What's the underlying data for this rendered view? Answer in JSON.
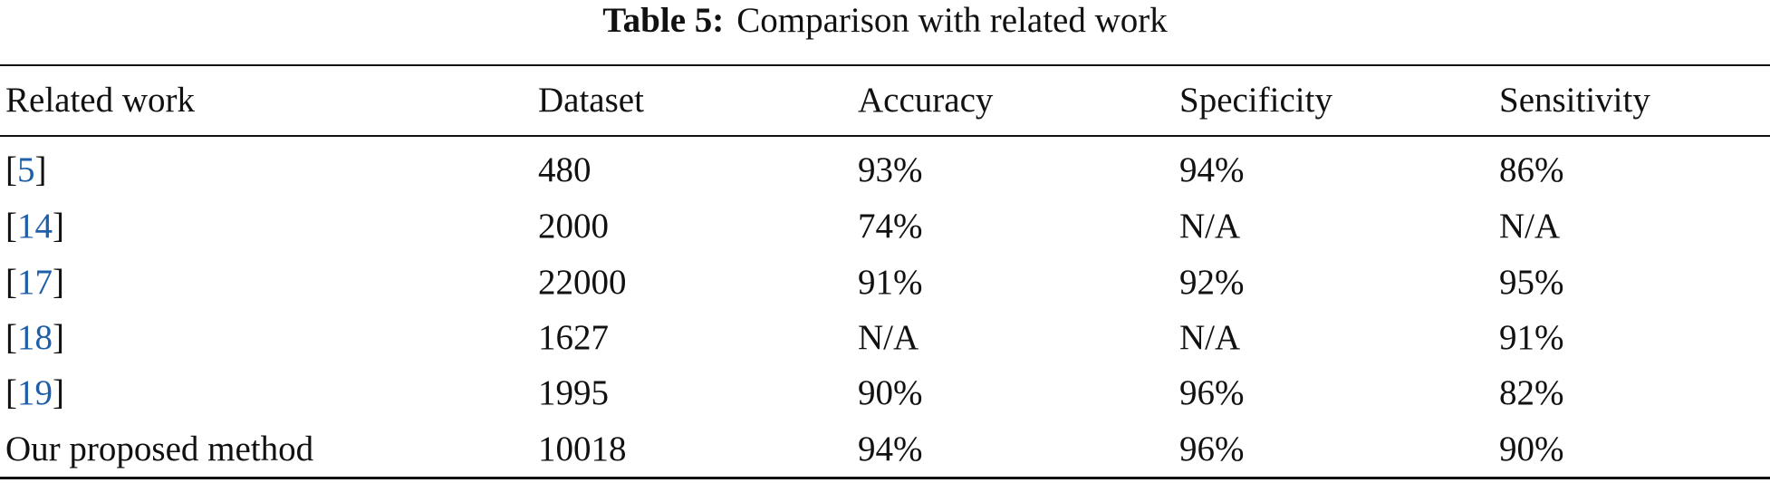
{
  "table": {
    "caption_label": "Table 5:",
    "caption": "Comparison with related work",
    "header": [
      "Related work",
      "Dataset",
      "Accuracy",
      "Specificity",
      "Sensitivity"
    ],
    "rows": [
      [
        "[5]",
        "480",
        "93%",
        "94%",
        "86%"
      ],
      [
        "[14]",
        "2000",
        "74%",
        "N/A",
        "N/A"
      ],
      [
        "[17]",
        "22000",
        "91%",
        "92%",
        "95%"
      ],
      [
        "[18]",
        "1627",
        "N/A",
        "N/A",
        "91%"
      ],
      [
        "[19]",
        "1995",
        "90%",
        "96%",
        "82%"
      ],
      [
        "Our proposed method",
        "10018",
        "94%",
        "96%",
        "90%"
      ]
    ]
  }
}
